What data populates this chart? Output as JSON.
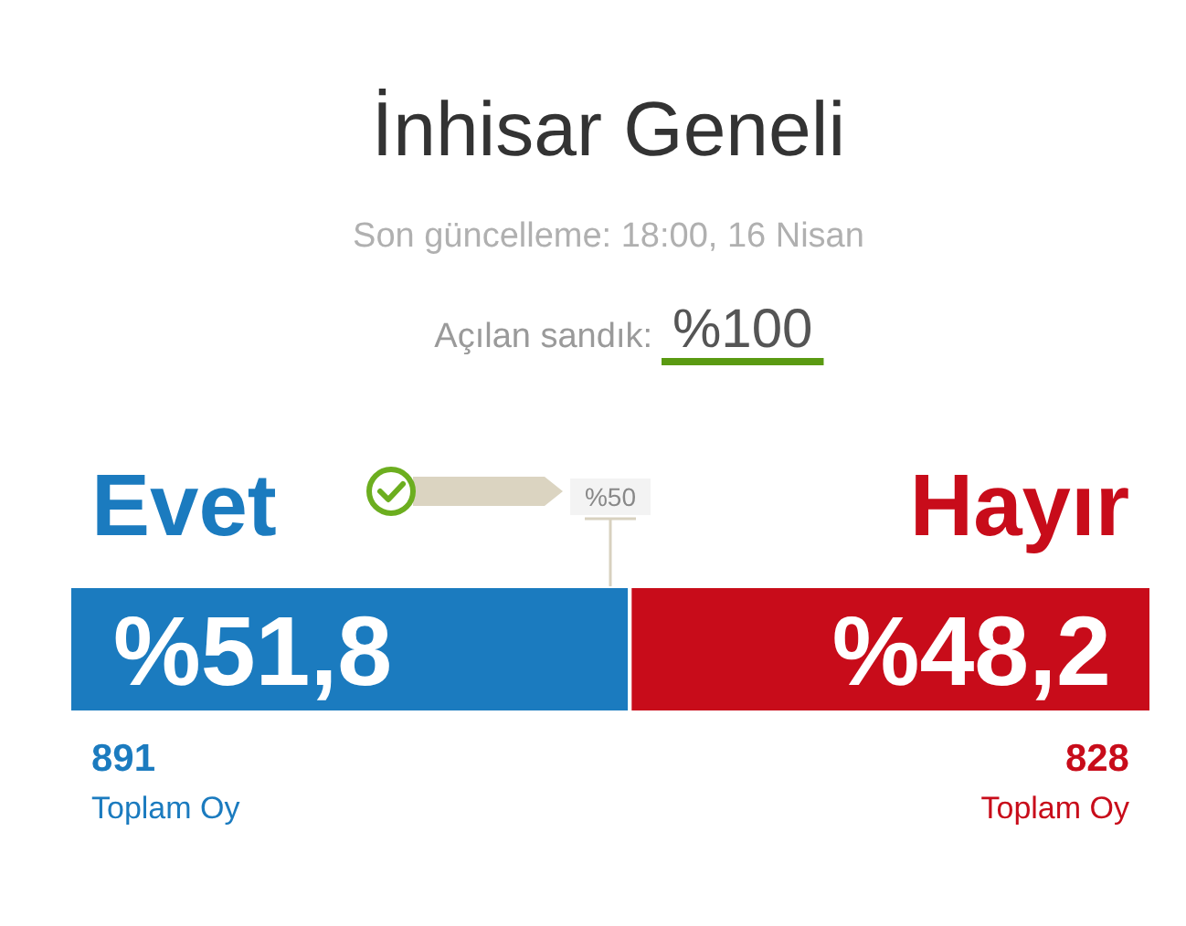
{
  "chart_data": {
    "type": "bar",
    "orientation": "horizontal",
    "stacked": true,
    "title": "İnhisar Geneli",
    "subtitle": "Son güncelleme: 18:00, 16 Nisan",
    "categories": [
      null
    ],
    "series": [
      {
        "name": "Evet",
        "color": "#1b7bbf",
        "values": [
          51.8
        ],
        "value_labels": [
          "%51,8"
        ]
      },
      {
        "name": "Hayır",
        "color": "#c80c1a",
        "values": [
          48.2
        ],
        "value_labels": [
          "%48,2"
        ]
      }
    ],
    "xlim": [
      0,
      100
    ],
    "tick_labels": false,
    "ref_lines": [
      {
        "axis": "x",
        "value": 50,
        "label": "%50",
        "color": "#d8d1bf"
      }
    ],
    "annotations": [
      "Açılan sandık: %100",
      "891",
      "Toplam Oy",
      "828",
      "Toplam Oy"
    ]
  }
}
